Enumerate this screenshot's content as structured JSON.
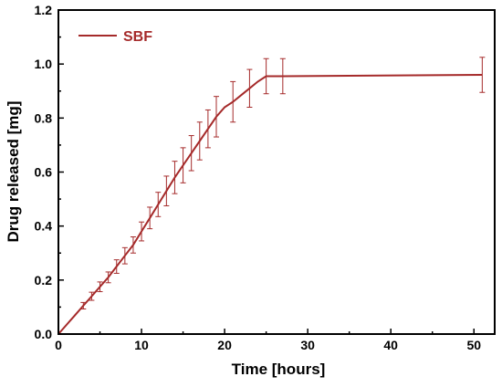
{
  "chart_data": {
    "type": "line",
    "title": "",
    "xlabel": "Time [hours]",
    "ylabel": "Drug released [mg]",
    "xlim": [
      0,
      52.5
    ],
    "ylim": [
      0.0,
      1.2
    ],
    "x_ticks": [
      0,
      10,
      20,
      30,
      40,
      50
    ],
    "x_tick_labels": [
      "0",
      "10",
      "20",
      "30",
      "40",
      "50"
    ],
    "y_ticks": [
      0.0,
      0.2,
      0.4,
      0.6,
      0.8,
      1.0,
      1.2
    ],
    "y_tick_labels": [
      "0.0",
      "0.2",
      "0.4",
      "0.6",
      "0.8",
      "1.0",
      "1.2"
    ],
    "grid": false,
    "legend_position": "top-left",
    "series": [
      {
        "name": "SBF",
        "color": "#a52a2a",
        "x": [
          0,
          1,
          2,
          3,
          4,
          5,
          6,
          7,
          8,
          9,
          10,
          11,
          12,
          13,
          14,
          15,
          16,
          17,
          18,
          19,
          20,
          21,
          22,
          23,
          24,
          25,
          27,
          51
        ],
        "y": [
          0.0,
          0.035,
          0.07,
          0.105,
          0.14,
          0.175,
          0.21,
          0.25,
          0.29,
          0.33,
          0.38,
          0.43,
          0.48,
          0.53,
          0.58,
          0.625,
          0.67,
          0.715,
          0.76,
          0.805,
          0.84,
          0.86,
          0.885,
          0.91,
          0.935,
          0.955,
          0.955,
          0.96
        ],
        "error": [
          0.0,
          0.0,
          0.0,
          0.012,
          0.015,
          0.018,
          0.02,
          0.025,
          0.03,
          0.03,
          0.035,
          0.04,
          0.045,
          0.055,
          0.06,
          0.065,
          0.065,
          0.07,
          0.07,
          0.075,
          0.0,
          0.075,
          0.0,
          0.07,
          0.0,
          0.065,
          0.065,
          0.065
        ]
      }
    ]
  }
}
